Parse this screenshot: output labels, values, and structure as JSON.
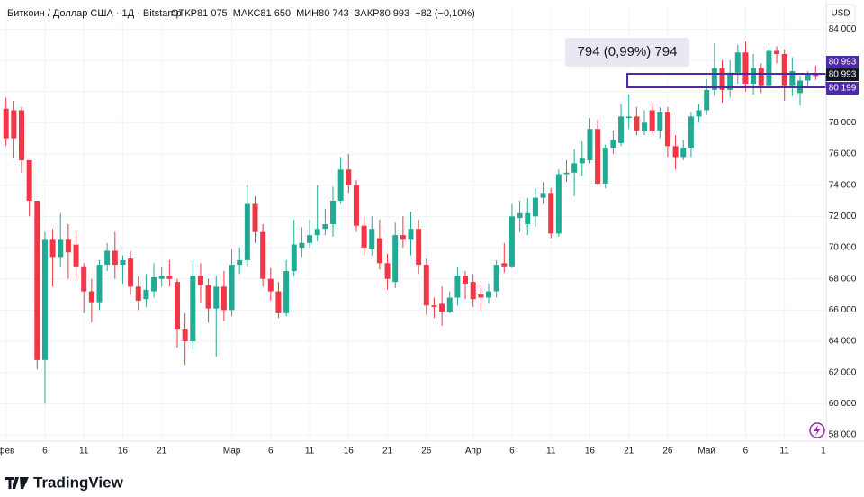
{
  "chart_data": {
    "type": "candlestick",
    "header": {
      "title": "Биткоин / Доллар США · 1Д · Bitstamp",
      "stats": [
        {
          "label": "ОТКР",
          "value": "81 075"
        },
        {
          "label": "МАКС",
          "value": "81 650"
        },
        {
          "label": "МИН",
          "value": "80 743"
        },
        {
          "label": "ЗАКР",
          "value": "80 993"
        }
      ],
      "change": "−82 (−0,10%)",
      "currency": "USD"
    },
    "brand": "TradingView",
    "measure_label": "794 (0,99%) 794",
    "price_labels": [
      "80 993",
      "80 993",
      "80 199"
    ],
    "up_color": "#22ab94",
    "down_color": "#f23645",
    "accent_color": "#4f2aa8",
    "ylim": [
      57600,
      85400
    ],
    "yticks": [
      {
        "value": 58000,
        "label": "58 000"
      },
      {
        "value": 60000,
        "label": "60 000"
      },
      {
        "value": 62000,
        "label": "62 000"
      },
      {
        "value": 64000,
        "label": "64 000"
      },
      {
        "value": 66000,
        "label": "66 000"
      },
      {
        "value": 68000,
        "label": "68 000"
      },
      {
        "value": 70000,
        "label": "70 000"
      },
      {
        "value": 72000,
        "label": "72 000"
      },
      {
        "value": 74000,
        "label": "74 000"
      },
      {
        "value": 76000,
        "label": "76 000"
      },
      {
        "value": 78000,
        "label": "78 000"
      },
      {
        "value": 80000,
        "label": "80 000"
      },
      {
        "value": 82000,
        "label": "82 000"
      },
      {
        "value": 84000,
        "label": "84 000"
      }
    ],
    "grid": true,
    "categories": [
      "фев",
      null,
      null,
      null,
      null,
      "6",
      null,
      null,
      null,
      null,
      "11",
      null,
      null,
      null,
      null,
      "16",
      null,
      null,
      null,
      null,
      "21",
      null,
      null,
      null,
      null,
      null,
      null,
      null,
      null,
      "Мар",
      null,
      null,
      null,
      null,
      "6",
      null,
      null,
      null,
      null,
      "11",
      null,
      null,
      null,
      null,
      "16",
      null,
      null,
      null,
      null,
      "21",
      null,
      null,
      null,
      null,
      "26",
      null,
      null,
      null,
      null,
      null,
      "Апр",
      null,
      null,
      null,
      null,
      "6",
      null,
      null,
      null,
      null,
      "11",
      null,
      null,
      null,
      null,
      "16",
      null,
      null,
      null,
      null,
      "21",
      null,
      null,
      null,
      null,
      "26",
      null,
      null,
      null,
      null,
      "Май",
      null,
      null,
      null,
      null,
      "6",
      null,
      null,
      null,
      null,
      "11",
      null,
      null,
      null,
      null,
      "1"
    ],
    "open": [
      78900,
      78800,
      78800,
      75600,
      73000,
      62800,
      70500,
      69400,
      70500,
      70200,
      68800,
      67200,
      66500,
      68900,
      69800,
      68900,
      69300,
      67500,
      66700,
      67200,
      68000,
      68200,
      67800,
      64800,
      64000,
      68200,
      67600,
      66100,
      67500,
      66000,
      68900,
      69200,
      72800,
      71000,
      68000,
      67200,
      65800,
      68500,
      70000,
      70300,
      70800,
      71200,
      71500,
      73000,
      75000,
      74000,
      71400,
      69900,
      70600,
      69000,
      67800,
      70800,
      70500,
      71200,
      68900,
      66300,
      66400,
      65900,
      66800,
      68200,
      67800,
      67000,
      66800,
      67200,
      69000,
      68800,
      71900,
      71500,
      72000,
      73200,
      73500,
      70900,
      74700,
      74800,
      75400,
      75600,
      77600,
      74100,
      76400,
      76700,
      78300,
      78400,
      77500,
      78800,
      77500,
      78700,
      76500,
      75800,
      76400,
      78400,
      78800,
      80100,
      81500,
      80100,
      81200,
      82500,
      80500,
      81500,
      80400,
      82600,
      82400,
      80400,
      79900,
      80700,
      81075,
      null
    ],
    "high": [
      79600,
      79400,
      79000,
      75600,
      73000,
      71000,
      71200,
      72200,
      71500,
      71000,
      69000,
      68000,
      69200,
      70300,
      71000,
      69500,
      69800,
      68200,
      68300,
      69000,
      68800,
      69200,
      68000,
      65800,
      69200,
      69000,
      68000,
      68200,
      68500,
      69900,
      70000,
      74000,
      73300,
      71500,
      68700,
      67800,
      69200,
      71800,
      71300,
      71800,
      74000,
      72500,
      73900,
      75800,
      76000,
      74300,
      72000,
      72000,
      71800,
      69600,
      71600,
      72000,
      72300,
      71800,
      69300,
      66800,
      67500,
      67200,
      68800,
      68500,
      68300,
      67600,
      67700,
      69200,
      70300,
      72800,
      73000,
      73200,
      73800,
      74200,
      73800,
      75000,
      75600,
      76300,
      76800,
      78300,
      78200,
      76600,
      77500,
      79200,
      79800,
      79000,
      78800,
      79300,
      79000,
      79000,
      77200,
      76900,
      78700,
      79200,
      80800,
      83100,
      82000,
      82000,
      83000,
      83200,
      82400,
      81800,
      82800,
      82900,
      82700,
      82200,
      81000,
      81300,
      81650,
      null
    ],
    "low": [
      76500,
      75700,
      74800,
      72000,
      62200,
      60000,
      67500,
      68800,
      68000,
      68000,
      65800,
      65200,
      66000,
      68500,
      68000,
      67700,
      67000,
      66000,
      66200,
      66800,
      67500,
      67500,
      63600,
      62500,
      63500,
      66500,
      65200,
      63000,
      65300,
      65600,
      68300,
      68800,
      70300,
      67500,
      66600,
      65500,
      65600,
      68200,
      69400,
      70000,
      70400,
      70800,
      70700,
      72800,
      73500,
      71000,
      69500,
      69500,
      68600,
      67300,
      67400,
      70000,
      69500,
      68300,
      65700,
      65500,
      65000,
      65800,
      66300,
      66700,
      66200,
      66000,
      66400,
      66800,
      68400,
      68700,
      71000,
      70800,
      71300,
      72800,
      70600,
      70700,
      74200,
      73300,
      74600,
      75400,
      74000,
      73800,
      76000,
      76500,
      77600,
      77200,
      77200,
      77300,
      77000,
      75800,
      75000,
      75600,
      75800,
      78000,
      78500,
      79700,
      79300,
      79600,
      80500,
      80000,
      79800,
      79900,
      80200,
      81800,
      79400,
      79700,
      79100,
      80200,
      80743,
      null
    ],
    "close": [
      77000,
      77000,
      75600,
      73000,
      62800,
      70500,
      69400,
      70500,
      69700,
      68800,
      67200,
      66500,
      68900,
      69800,
      68900,
      69200,
      67500,
      66600,
      67300,
      68100,
      68200,
      68000,
      64800,
      64000,
      68200,
      67600,
      66100,
      67500,
      66000,
      68900,
      69200,
      72800,
      71000,
      68000,
      67200,
      65800,
      68500,
      70200,
      70300,
      70800,
      71200,
      71500,
      73000,
      75000,
      74000,
      71400,
      70000,
      71200,
      69000,
      68000,
      70800,
      70500,
      71200,
      68900,
      66300,
      66200,
      65900,
      66800,
      68200,
      67700,
      66700,
      66800,
      67200,
      68900,
      68800,
      72000,
      72200,
      72200,
      73200,
      73500,
      70900,
      74700,
      74800,
      75400,
      75700,
      77600,
      74100,
      76400,
      76900,
      78400,
      78400,
      77500,
      78000,
      77500,
      78700,
      76500,
      75800,
      76400,
      78400,
      78800,
      80100,
      81500,
      80100,
      81200,
      82500,
      80500,
      81500,
      80400,
      82600,
      82400,
      80400,
      81300,
      80700,
      81075,
      80993,
      null
    ]
  }
}
